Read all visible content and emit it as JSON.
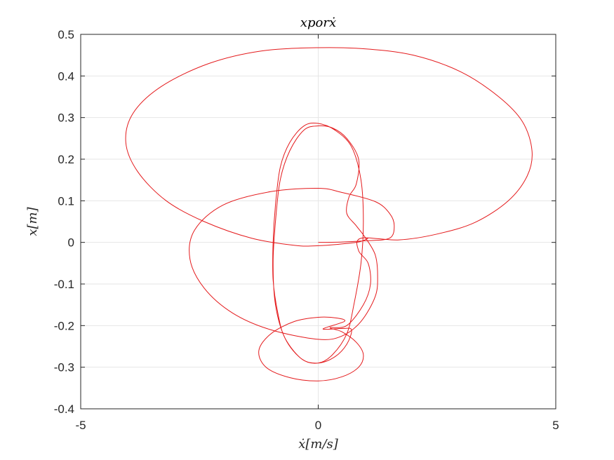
{
  "chart_data": {
    "type": "line",
    "title": "xporẋ",
    "xlabel": "ẋ[m/s]",
    "ylabel": "x[m]",
    "xlim": [
      -5,
      5
    ],
    "ylim": [
      -0.4,
      0.5
    ],
    "xticks": [
      -5,
      0,
      5
    ],
    "yticks": [
      -0.4,
      -0.3,
      -0.2,
      -0.1,
      0,
      0.1,
      0.2,
      0.3,
      0.4,
      0.5
    ],
    "xtick_labels": [
      "-5",
      "0",
      "5"
    ],
    "ytick_labels": [
      "-0.4",
      "-0.3",
      "-0.2",
      "-0.1",
      "0",
      "0.1",
      "0.2",
      "0.3",
      "0.4",
      "0.5"
    ],
    "grid": true,
    "series": [
      {
        "color": "#e41a1c",
        "points": [
          [
            0.0,
            0.0
          ],
          [
            0.5,
            0.001
          ],
          [
            1.0,
            0.004
          ],
          [
            1.5,
            0.01
          ],
          [
            1.6,
            0.04
          ],
          [
            1.5,
            0.07
          ],
          [
            1.2,
            0.098
          ],
          [
            0.5,
            0.12
          ],
          [
            0.0,
            0.13
          ],
          [
            -1.0,
            0.122
          ],
          [
            -2.0,
            0.09
          ],
          [
            -2.6,
            0.03
          ],
          [
            -2.7,
            -0.04
          ],
          [
            -2.4,
            -0.11
          ],
          [
            -1.8,
            -0.17
          ],
          [
            -1.0,
            -0.21
          ],
          [
            0.0,
            -0.233
          ],
          [
            0.5,
            -0.225
          ],
          [
            0.9,
            -0.19
          ],
          [
            1.2,
            -0.13
          ],
          [
            1.25,
            -0.08
          ],
          [
            1.2,
            -0.03
          ],
          [
            1.0,
            0.01
          ],
          [
            0.8,
            0.04
          ],
          [
            0.6,
            0.07
          ],
          [
            0.65,
            0.11
          ],
          [
            0.8,
            0.14
          ],
          [
            0.85,
            0.2
          ],
          [
            0.6,
            0.25
          ],
          [
            0.3,
            0.275
          ],
          [
            0.0,
            0.28
          ],
          [
            -0.3,
            0.27
          ],
          [
            -0.6,
            0.22
          ],
          [
            -0.8,
            0.15
          ],
          [
            -0.9,
            0.05
          ],
          [
            -0.95,
            -0.05
          ],
          [
            -0.9,
            -0.15
          ],
          [
            -0.7,
            -0.23
          ],
          [
            -0.35,
            -0.28
          ],
          [
            0.0,
            -0.29
          ],
          [
            0.3,
            -0.27
          ],
          [
            0.6,
            -0.22
          ],
          [
            0.75,
            -0.15
          ],
          [
            0.9,
            -0.05
          ],
          [
            0.95,
            0.05
          ],
          [
            0.9,
            0.15
          ],
          [
            0.7,
            0.23
          ],
          [
            0.35,
            0.27
          ],
          [
            0.0,
            0.286
          ],
          [
            -0.3,
            0.28
          ],
          [
            -0.6,
            0.24
          ],
          [
            -0.8,
            0.18
          ],
          [
            -0.9,
            0.09
          ],
          [
            -0.95,
            0.0
          ],
          [
            -0.95,
            -0.09
          ],
          [
            -0.85,
            -0.17
          ],
          [
            -0.7,
            -0.23
          ],
          [
            -0.35,
            -0.28
          ],
          [
            0.0,
            -0.29
          ],
          [
            0.35,
            -0.275
          ],
          [
            0.6,
            -0.245
          ],
          [
            0.7,
            -0.21
          ],
          [
            0.5,
            -0.207
          ],
          [
            0.1,
            -0.208
          ],
          [
            0.55,
            -0.19
          ],
          [
            0.4,
            -0.182
          ],
          [
            0.0,
            -0.18
          ],
          [
            -0.5,
            -0.19
          ],
          [
            -1.0,
            -0.22
          ],
          [
            -1.25,
            -0.26
          ],
          [
            -1.1,
            -0.3
          ],
          [
            -0.6,
            -0.325
          ],
          [
            0.0,
            -0.333
          ],
          [
            0.5,
            -0.323
          ],
          [
            0.85,
            -0.3
          ],
          [
            0.95,
            -0.27
          ],
          [
            0.8,
            -0.24
          ],
          [
            0.5,
            -0.215
          ],
          [
            0.25,
            -0.205
          ],
          [
            0.6,
            -0.2
          ],
          [
            0.95,
            -0.15
          ],
          [
            1.1,
            -0.1
          ],
          [
            1.05,
            -0.05
          ],
          [
            0.85,
            -0.02
          ],
          [
            0.9,
            0.01
          ],
          [
            1.7,
            0.006
          ],
          [
            2.5,
            0.02
          ],
          [
            3.3,
            0.048
          ],
          [
            4.0,
            0.1
          ],
          [
            4.4,
            0.16
          ],
          [
            4.5,
            0.22
          ],
          [
            4.3,
            0.29
          ],
          [
            3.8,
            0.35
          ],
          [
            3.0,
            0.41
          ],
          [
            2.0,
            0.45
          ],
          [
            1.0,
            0.465
          ],
          [
            0.0,
            0.468
          ],
          [
            -1.2,
            0.46
          ],
          [
            -2.3,
            0.43
          ],
          [
            -3.3,
            0.375
          ],
          [
            -3.9,
            0.31
          ],
          [
            -4.05,
            0.24
          ],
          [
            -3.8,
            0.17
          ],
          [
            -3.2,
            0.1
          ],
          [
            -2.4,
            0.05
          ],
          [
            -1.4,
            0.01
          ],
          [
            -0.5,
            -0.007
          ],
          [
            0.0,
            -0.008
          ],
          [
            0.8,
            0.0
          ],
          [
            1.05,
            0.01
          ]
        ]
      }
    ]
  }
}
